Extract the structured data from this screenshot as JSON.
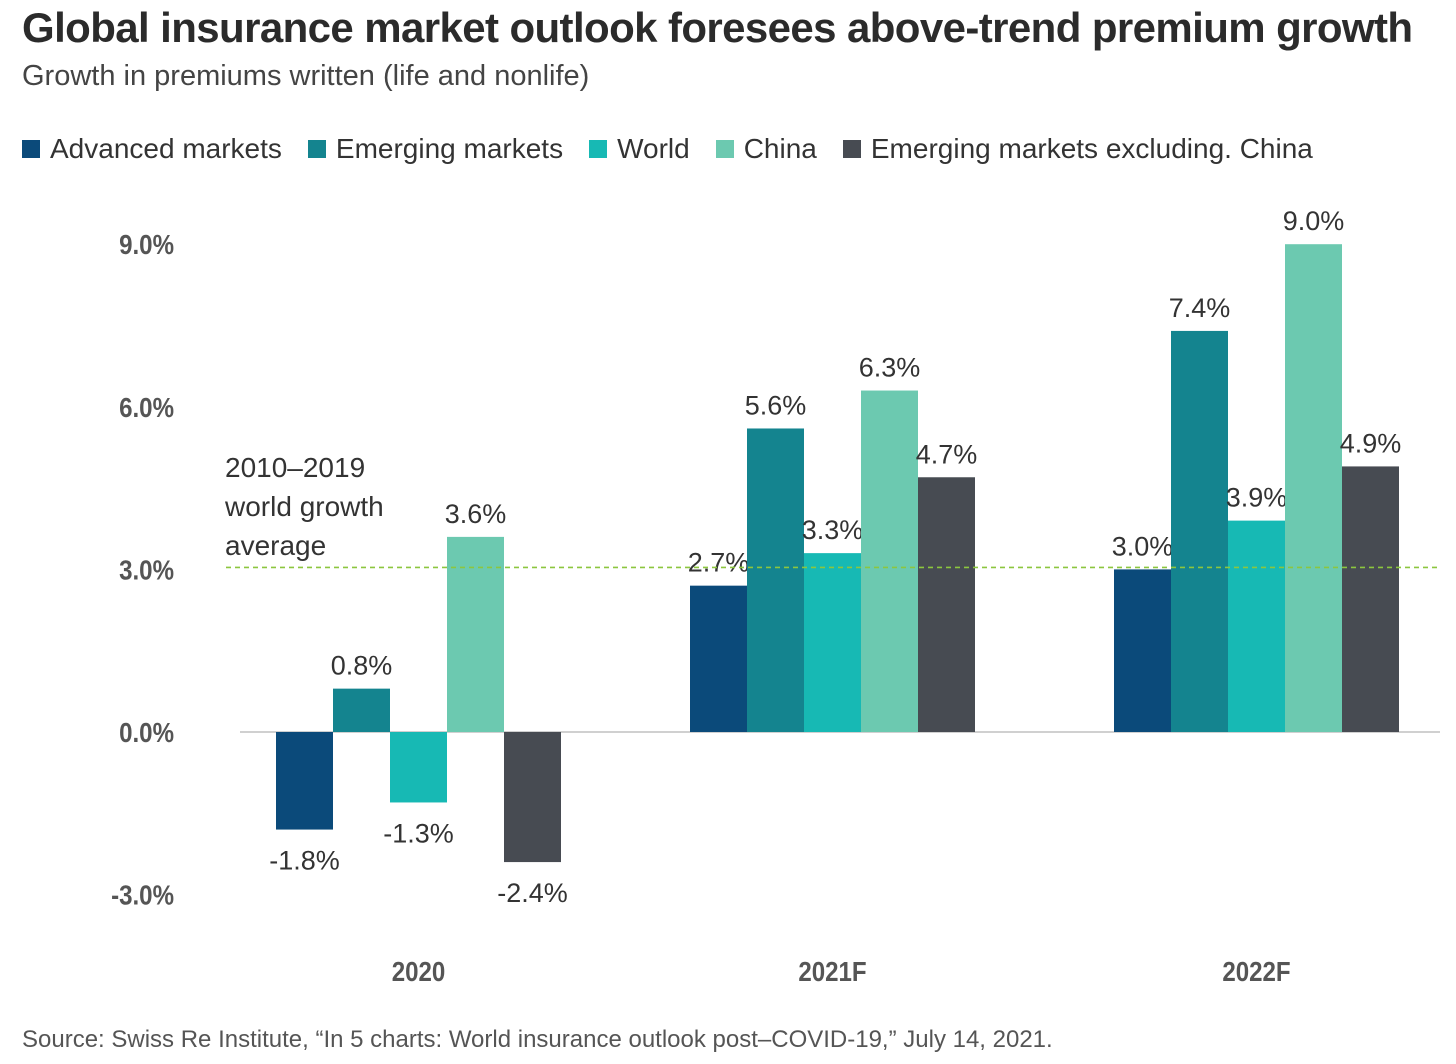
{
  "title": "Global insurance market outlook foresees above-trend premium growth",
  "subtitle": "Growth in premiums written (life and nonlife)",
  "source": "Source: Swiss Re Institute, “In 5 charts: World insurance outlook post–COVID-19,” July 14, 2021.",
  "chart_data": {
    "type": "bar",
    "categories": [
      "2020",
      "2021F",
      "2022F"
    ],
    "series": [
      {
        "name": "Advanced markets",
        "color": "#0b4a7a",
        "values": [
          -1.8,
          2.7,
          3.0
        ],
        "labels": [
          "-1.8%",
          "2.7%",
          "3.0%"
        ]
      },
      {
        "name": "Emerging markets",
        "color": "#14848f",
        "values": [
          0.8,
          5.6,
          7.4
        ],
        "labels": [
          "0.8%",
          "5.6%",
          "7.4%"
        ]
      },
      {
        "name": "World",
        "color": "#17b9b4",
        "values": [
          -1.3,
          3.3,
          3.9
        ],
        "labels": [
          "-1.3%",
          "3.3%",
          "3.9%"
        ]
      },
      {
        "name": "China",
        "color": "#6cc9b0",
        "values": [
          3.6,
          6.3,
          9.0
        ],
        "labels": [
          "3.6%",
          "6.3%",
          "9.0%"
        ]
      },
      {
        "name": "Emerging markets excluding. China",
        "color": "#474b52",
        "values": [
          -2.4,
          4.7,
          4.9
        ],
        "labels": [
          "-2.4%",
          "4.7%",
          "4.9%"
        ]
      }
    ],
    "yticks": [
      -3.0,
      0.0,
      3.0,
      6.0,
      9.0
    ],
    "ytick_labels": [
      "-3.0%",
      "0.0%",
      "3.0%",
      "6.0%",
      "9.0%"
    ],
    "ylim": [
      -3.0,
      9.0
    ],
    "reference_line": {
      "value": 3.0,
      "label_lines": [
        "2010–2019",
        "world growth",
        "average"
      ],
      "color": "#8cc63f"
    },
    "legend_position": "top-left",
    "grid": false
  }
}
